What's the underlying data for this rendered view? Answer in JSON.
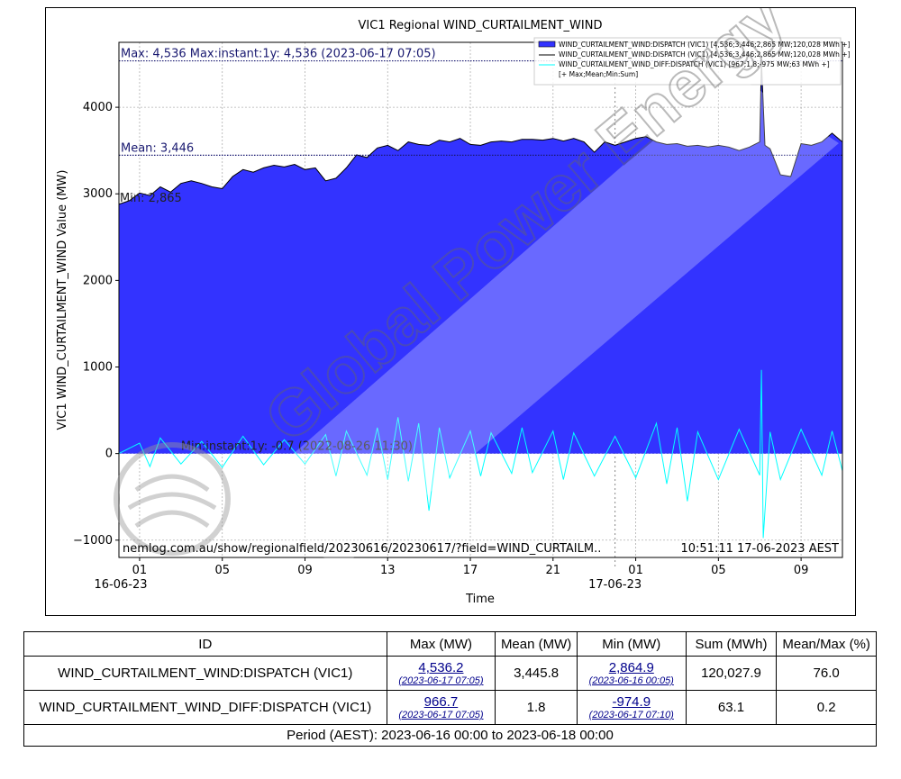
{
  "chart_data": {
    "type": "area",
    "title": "VIC1 Regional WIND_CURTAILMENT_WIND",
    "xlabel": "Time",
    "ylabel": "VIC1 WIND_CURTAILMENT_WIND Value (MW)",
    "ylim": [
      -1200,
      4750
    ],
    "y_ticks": [
      -1000,
      0,
      1000,
      2000,
      3000,
      4000
    ],
    "y_tick_labels": [
      "−1000",
      "0",
      "1000",
      "2000",
      "3000",
      "4000"
    ],
    "x_range": [
      "2023-06-16 00:00",
      "2023-06-17 11:00"
    ],
    "x_ticks": [
      {
        "t": "2023-06-16 01:00",
        "label": "01"
      },
      {
        "t": "2023-06-16 05:00",
        "label": "05"
      },
      {
        "t": "2023-06-16 09:00",
        "label": "09"
      },
      {
        "t": "2023-06-16 13:00",
        "label": "13"
      },
      {
        "t": "2023-06-16 17:00",
        "label": "17"
      },
      {
        "t": "2023-06-16 21:00",
        "label": "21"
      },
      {
        "t": "2023-06-17 01:00",
        "label": "01"
      },
      {
        "t": "2023-06-17 05:00",
        "label": "05"
      },
      {
        "t": "2023-06-17 09:00",
        "label": "09"
      }
    ],
    "date_labels": [
      {
        "t": "2023-06-16 00:00",
        "label": "16-06-23"
      },
      {
        "t": "2023-06-17 00:00",
        "label": "17-06-23"
      }
    ],
    "day_divider": "2023-06-17 00:00",
    "grid": true,
    "legend_position": "top-right",
    "series": [
      {
        "name": "WIND_CURTAILMENT_WIND:DISPATCH (VIC1) [4,536;3,446;2,865 MW;120,028 MWh +]",
        "style": "filled-area",
        "color": "#3333ff",
        "points": [
          [
            "2023-06-16 00:00",
            2880
          ],
          [
            "2023-06-16 00:30",
            2920
          ],
          [
            "2023-06-16 01:00",
            3010
          ],
          [
            "2023-06-16 01:30",
            2980
          ],
          [
            "2023-06-16 02:00",
            3080
          ],
          [
            "2023-06-16 02:30",
            3020
          ],
          [
            "2023-06-16 03:00",
            3120
          ],
          [
            "2023-06-16 03:30",
            3150
          ],
          [
            "2023-06-16 04:00",
            3120
          ],
          [
            "2023-06-16 04:30",
            3080
          ],
          [
            "2023-06-16 05:00",
            3060
          ],
          [
            "2023-06-16 05:30",
            3200
          ],
          [
            "2023-06-16 06:00",
            3280
          ],
          [
            "2023-06-16 06:30",
            3250
          ],
          [
            "2023-06-16 07:00",
            3300
          ],
          [
            "2023-06-16 07:30",
            3330
          ],
          [
            "2023-06-16 08:00",
            3310
          ],
          [
            "2023-06-16 08:30",
            3340
          ],
          [
            "2023-06-16 09:00",
            3280
          ],
          [
            "2023-06-16 09:30",
            3300
          ],
          [
            "2023-06-16 10:00",
            3150
          ],
          [
            "2023-06-16 10:30",
            3180
          ],
          [
            "2023-06-16 11:00",
            3300
          ],
          [
            "2023-06-16 11:30",
            3450
          ],
          [
            "2023-06-16 12:00",
            3420
          ],
          [
            "2023-06-16 12:30",
            3530
          ],
          [
            "2023-06-16 13:00",
            3560
          ],
          [
            "2023-06-16 13:30",
            3500
          ],
          [
            "2023-06-16 14:00",
            3600
          ],
          [
            "2023-06-16 14:30",
            3570
          ],
          [
            "2023-06-16 15:00",
            3560
          ],
          [
            "2023-06-16 15:30",
            3620
          ],
          [
            "2023-06-16 16:00",
            3600
          ],
          [
            "2023-06-16 16:30",
            3640
          ],
          [
            "2023-06-16 17:00",
            3570
          ],
          [
            "2023-06-16 17:30",
            3560
          ],
          [
            "2023-06-16 18:00",
            3600
          ],
          [
            "2023-06-16 18:30",
            3610
          ],
          [
            "2023-06-16 19:00",
            3600
          ],
          [
            "2023-06-16 19:30",
            3630
          ],
          [
            "2023-06-16 20:00",
            3630
          ],
          [
            "2023-06-16 20:30",
            3620
          ],
          [
            "2023-06-16 21:00",
            3640
          ],
          [
            "2023-06-16 21:30",
            3610
          ],
          [
            "2023-06-16 22:00",
            3640
          ],
          [
            "2023-06-16 22:30",
            3600
          ],
          [
            "2023-06-16 23:00",
            3480
          ],
          [
            "2023-06-16 23:30",
            3600
          ],
          [
            "2023-06-17 00:00",
            3560
          ],
          [
            "2023-06-17 00:30",
            3600
          ],
          [
            "2023-06-17 01:00",
            3640
          ],
          [
            "2023-06-17 01:30",
            3660
          ],
          [
            "2023-06-17 02:00",
            3600
          ],
          [
            "2023-06-17 02:30",
            3570
          ],
          [
            "2023-06-17 03:00",
            3580
          ],
          [
            "2023-06-17 03:30",
            3550
          ],
          [
            "2023-06-17 04:00",
            3560
          ],
          [
            "2023-06-17 04:30",
            3540
          ],
          [
            "2023-06-17 05:00",
            3560
          ],
          [
            "2023-06-17 05:30",
            3540
          ],
          [
            "2023-06-17 06:00",
            3500
          ],
          [
            "2023-06-17 06:30",
            3540
          ],
          [
            "2023-06-17 07:00",
            3600
          ],
          [
            "2023-06-17 07:05",
            4536
          ],
          [
            "2023-06-17 07:15",
            3560
          ],
          [
            "2023-06-17 07:30",
            3520
          ],
          [
            "2023-06-17 08:00",
            3220
          ],
          [
            "2023-06-17 08:30",
            3200
          ],
          [
            "2023-06-17 09:00",
            3580
          ],
          [
            "2023-06-17 09:30",
            3560
          ],
          [
            "2023-06-17 10:00",
            3600
          ],
          [
            "2023-06-17 10:30",
            3700
          ],
          [
            "2023-06-17 11:00",
            3600
          ]
        ]
      },
      {
        "name": "WIND_CURTAILMENT_WIND:DISPATCH (VIC1) [4,536;3,446;2,865 MW;120,028 MWh +]",
        "style": "line",
        "color": "#000000"
      },
      {
        "name": "WIND_CURTAILMENT_WIND_DIFF:DISPATCH (VIC1) [967;1.8;-975 MW;63 MWh +]",
        "style": "line",
        "color": "#00ffff",
        "points": [
          [
            "2023-06-16 00:00",
            0
          ],
          [
            "2023-06-16 01:00",
            120
          ],
          [
            "2023-06-16 01:30",
            -150
          ],
          [
            "2023-06-16 02:00",
            180
          ],
          [
            "2023-06-16 03:00",
            -120
          ],
          [
            "2023-06-16 04:00",
            140
          ],
          [
            "2023-06-16 05:00",
            -160
          ],
          [
            "2023-06-16 06:00",
            200
          ],
          [
            "2023-06-16 07:00",
            -130
          ],
          [
            "2023-06-16 08:00",
            160
          ],
          [
            "2023-06-16 09:00",
            -120
          ],
          [
            "2023-06-16 10:00",
            220
          ],
          [
            "2023-06-16 10:30",
            -260
          ],
          [
            "2023-06-16 11:00",
            260
          ],
          [
            "2023-06-16 12:00",
            -250
          ],
          [
            "2023-06-16 12:30",
            300
          ],
          [
            "2023-06-16 13:00",
            -300
          ],
          [
            "2023-06-16 13:30",
            420
          ],
          [
            "2023-06-16 14:00",
            -320
          ],
          [
            "2023-06-16 14:30",
            350
          ],
          [
            "2023-06-16 15:00",
            -660
          ],
          [
            "2023-06-16 15:30",
            300
          ],
          [
            "2023-06-16 16:00",
            -280
          ],
          [
            "2023-06-16 17:00",
            260
          ],
          [
            "2023-06-16 17:30",
            -260
          ],
          [
            "2023-06-16 18:00",
            240
          ],
          [
            "2023-06-16 19:00",
            -230
          ],
          [
            "2023-06-16 19:30",
            300
          ],
          [
            "2023-06-16 20:00",
            -220
          ],
          [
            "2023-06-16 21:00",
            260
          ],
          [
            "2023-06-16 21:30",
            -300
          ],
          [
            "2023-06-16 22:00",
            240
          ],
          [
            "2023-06-16 23:00",
            -260
          ],
          [
            "2023-06-17 00:00",
            200
          ],
          [
            "2023-06-17 01:00",
            -280
          ],
          [
            "2023-06-17 02:00",
            350
          ],
          [
            "2023-06-17 02:30",
            -350
          ],
          [
            "2023-06-17 03:00",
            300
          ],
          [
            "2023-06-17 03:30",
            -550
          ],
          [
            "2023-06-17 04:00",
            250
          ],
          [
            "2023-06-17 05:00",
            -300
          ],
          [
            "2023-06-17 06:00",
            280
          ],
          [
            "2023-06-17 07:00",
            -250
          ],
          [
            "2023-06-17 07:05",
            967
          ],
          [
            "2023-06-17 07:10",
            -975
          ],
          [
            "2023-06-17 07:30",
            250
          ],
          [
            "2023-06-17 08:00",
            -300
          ],
          [
            "2023-06-17 09:00",
            280
          ],
          [
            "2023-06-17 10:00",
            -250
          ],
          [
            "2023-06-17 10:30",
            260
          ],
          [
            "2023-06-17 11:00",
            -200
          ]
        ]
      }
    ],
    "legend_extra": "[+ Max;Mean;Min:Sum]",
    "reference_lines": [
      {
        "value": 4536,
        "label": "Max: 4,536  Max:instant:1y: 4,536 (2023-06-17 07:05)"
      },
      {
        "value": 3446,
        "label": "Mean: 3,446"
      }
    ],
    "annotations": [
      {
        "value": 2865,
        "label": "Min: 2,865"
      },
      {
        "value": 0,
        "label": "Min:instant:1y: -0.7 (2022-08-26 11:30)"
      }
    ],
    "footer_left": "nemlog.com.au/show/regionalfield/20230616/20230617/?field=WIND_CURTAILM..",
    "footer_right": "10:51:11 17-06-2023 AEST",
    "watermark": "Global Power Energy"
  },
  "colors": {
    "area_fill": "#3333ff",
    "area_line": "#000000",
    "diff_line": "#00ffff",
    "ref_line": "#191970",
    "grid": "#b0b0b0"
  },
  "table": {
    "headers": [
      "ID",
      "Max (MW)",
      "Mean (MW)",
      "Min (MW)",
      "Sum (MWh)",
      "Mean/Max (%)"
    ],
    "rows": [
      {
        "id": "WIND_CURTAILMENT_WIND:DISPATCH (VIC1)",
        "max": "4,536.2",
        "max_time": "(2023-06-17 07:05)",
        "mean": "3,445.8",
        "min": "2,864.9",
        "min_time": "(2023-06-16 00:05)",
        "sum": "120,027.9",
        "mean_max": "76.0"
      },
      {
        "id": "WIND_CURTAILMENT_WIND_DIFF:DISPATCH (VIC1)",
        "max": "966.7",
        "max_time": "(2023-06-17 07:05)",
        "mean": "1.8",
        "min": "-974.9",
        "min_time": "(2023-06-17 07:10)",
        "sum": "63.1",
        "mean_max": "0.2"
      }
    ],
    "period": "Period (AEST): 2023-06-16 00:00 to 2023-06-18 00:00"
  }
}
